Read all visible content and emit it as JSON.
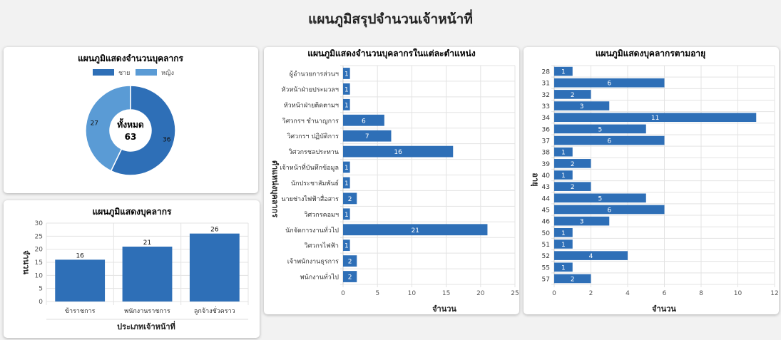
{
  "page": {
    "title": "แผนภูมิสรุปจำนวนเจ้าหน้าที่"
  },
  "colors": {
    "primary": "#2e6fb7",
    "secondary": "#5a9bd5",
    "grid": "#e3e3e3"
  },
  "chart_data": [
    {
      "id": "gender",
      "type": "pie",
      "variant": "doughnut",
      "title": "แผนภูมิแสดงจำนวนบุคลากร",
      "legend": [
        "ชาย",
        "หญิง"
      ],
      "legend_position": "top",
      "values": [
        36,
        27
      ],
      "center_label": "ทั้งหมด",
      "center_value": "63"
    },
    {
      "id": "staff_type",
      "type": "bar",
      "orientation": "vertical",
      "title": "แผนภูมิแสดงบุคลากร",
      "categories": [
        "ข้าราชการ",
        "พนักงานราชการ",
        "ลูกจ้างชั่วคราว"
      ],
      "values": [
        16,
        21,
        26
      ],
      "xlabel": "ประเภทเจ้าหน้าที่",
      "ylabel": "จำนวน",
      "ylim": [
        0,
        30
      ],
      "yticks": [
        0,
        5,
        10,
        15,
        20,
        25,
        30
      ],
      "grid": true
    },
    {
      "id": "position",
      "type": "bar",
      "orientation": "horizontal",
      "title": "แผนภูมิแสดงจำนวนบุคลากรในแต่ละตำแหน่ง",
      "categories": [
        "ผู้อำนวยการส่วนฯ",
        "หัวหน้าฝ่ายประมวลฯ",
        "หัวหน้าฝ่ายติดตามฯ",
        "วิศวกรฯ ชำนาญการ",
        "วิศวกรฯ ปฏิบัติการ",
        "วิศวกรชลประทาน",
        "เจ้าหน้าที่บันทึกข้อมูล",
        "นักประชาสัมพันธ์",
        "นายช่างไฟฟ้าสื่อสาร",
        "วิศวกรคอมฯ",
        "นักจัดการงานทั่วไป",
        "วิศวกรไฟฟ้า",
        "เจ้าพนักงานธุรการ",
        "พนักงานทั่วไป"
      ],
      "values": [
        1,
        1,
        1,
        6,
        7,
        16,
        1,
        1,
        2,
        1,
        21,
        1,
        2,
        2
      ],
      "xlabel": "จำนวน",
      "ylabel": "ตำแหน่งบุคลากร",
      "xlim": [
        0,
        25
      ],
      "xticks": [
        0,
        5,
        10,
        15,
        20,
        25
      ],
      "grid": true
    },
    {
      "id": "age",
      "type": "bar",
      "orientation": "horizontal",
      "title": "แผนภูมิแสดงบุคลากรตามอายุ",
      "categories": [
        "28",
        "31",
        "32",
        "33",
        "34",
        "36",
        "37",
        "38",
        "39",
        "40",
        "43",
        "44",
        "45",
        "46",
        "50",
        "51",
        "52",
        "55",
        "57"
      ],
      "values": [
        1,
        6,
        2,
        3,
        11,
        5,
        6,
        1,
        2,
        1,
        2,
        5,
        6,
        3,
        1,
        1,
        4,
        1,
        2
      ],
      "xlabel": "จำนวน",
      "ylabel": "อายุ",
      "xlim": [
        0,
        12
      ],
      "xticks": [
        0,
        2,
        4,
        6,
        8,
        10,
        12
      ],
      "grid": true
    }
  ]
}
